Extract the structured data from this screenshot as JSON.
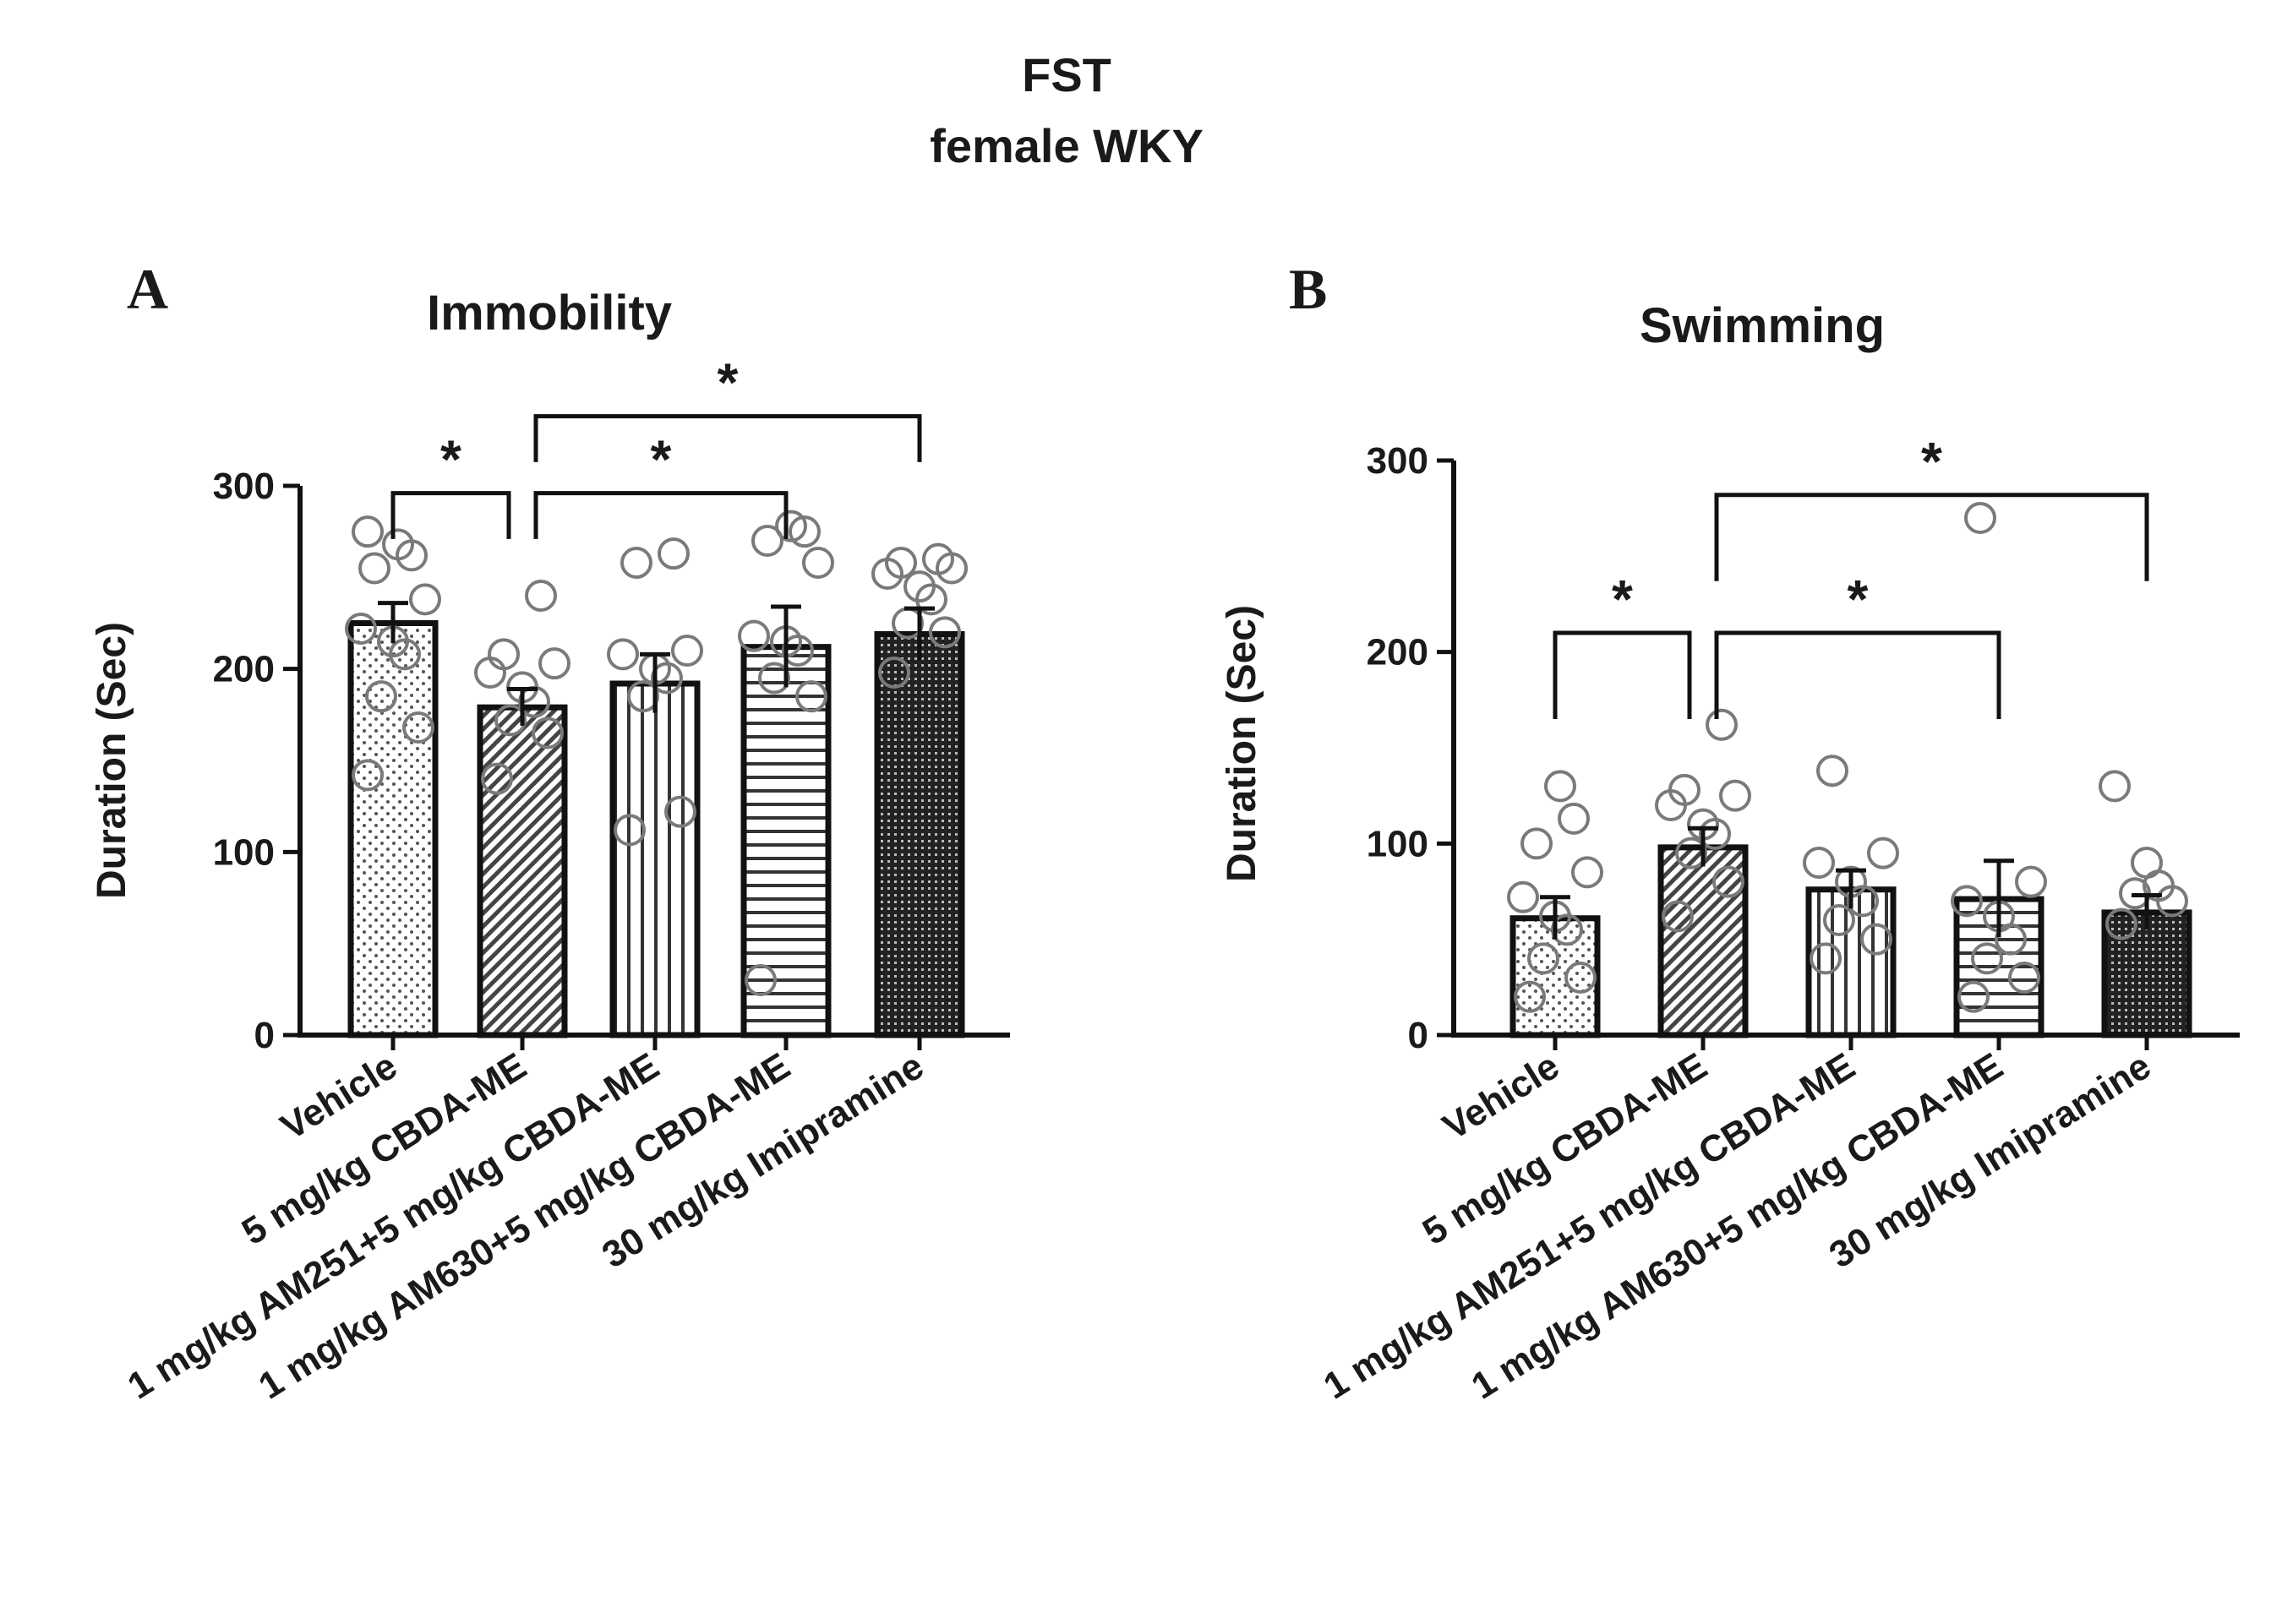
{
  "figure": {
    "title_line1": "FST",
    "title_line2": "female WKY"
  },
  "categories": [
    "Vehicle",
    "5 mg/kg CBDA-ME",
    "1 mg/kg AM251+5 mg/kg CBDA-ME",
    "1 mg/kg AM630+5 mg/kg CBDA-ME",
    "30 mg/kg Imipramine"
  ],
  "chart_data": [
    {
      "type": "bar",
      "panel": "A",
      "title": "Immobility",
      "ylabel": "Duration (Sec)",
      "xlabel": "",
      "ylim": [
        0,
        300
      ],
      "yticks": [
        0,
        100,
        200,
        300
      ],
      "categories": [
        "Vehicle",
        "5 mg/kg CBDA-ME",
        "1 mg/kg AM251+5 mg/kg CBDA-ME",
        "1 mg/kg AM630+5 mg/kg CBDA-ME",
        "30 mg/kg Imipramine"
      ],
      "values": [
        225,
        179,
        192,
        212,
        219
      ],
      "errors": [
        11,
        10,
        16,
        22,
        14
      ],
      "patterns": [
        "dots",
        "diag",
        "vert",
        "horiz",
        "dense"
      ],
      "points": [
        [
          142,
          168,
          185,
          208,
          215,
          222,
          238,
          255,
          262,
          268,
          275
        ],
        [
          140,
          165,
          172,
          182,
          190,
          198,
          203,
          208,
          240
        ],
        [
          112,
          122,
          185,
          195,
          200,
          208,
          210,
          258,
          263
        ],
        [
          30,
          185,
          195,
          210,
          215,
          218,
          258,
          270,
          275,
          278
        ],
        [
          198,
          220,
          225,
          238,
          245,
          252,
          255,
          258,
          260
        ]
      ],
      "annotations": [
        {
          "from": 0,
          "to": 1,
          "level": 296,
          "label": "*"
        },
        {
          "from": 1,
          "to": 3,
          "level": 296,
          "label": "*"
        },
        {
          "from": 1,
          "to": 4,
          "level": 338,
          "label": "*"
        }
      ]
    },
    {
      "type": "bar",
      "panel": "B",
      "title": "Swimming",
      "ylabel": "Duration (Sec)",
      "xlabel": "",
      "ylim": [
        0,
        300
      ],
      "yticks": [
        0,
        100,
        200,
        300
      ],
      "categories": [
        "Vehicle",
        "5 mg/kg CBDA-ME",
        "1 mg/kg AM251+5 mg/kg CBDA-ME",
        "1 mg/kg AM630+5 mg/kg CBDA-ME",
        "30 mg/kg Imipramine"
      ],
      "values": [
        61,
        98,
        76,
        71,
        64
      ],
      "errors": [
        11,
        10,
        10,
        20,
        9
      ],
      "patterns": [
        "dots",
        "diag",
        "vert",
        "horiz",
        "dense"
      ],
      "points": [
        [
          20,
          30,
          40,
          55,
          62,
          72,
          85,
          100,
          113,
          130
        ],
        [
          62,
          80,
          95,
          105,
          110,
          120,
          125,
          128,
          162
        ],
        [
          40,
          50,
          60,
          70,
          80,
          90,
          95,
          138
        ],
        [
          20,
          30,
          40,
          50,
          62,
          70,
          80,
          270
        ],
        [
          58,
          70,
          74,
          78,
          90,
          130
        ]
      ],
      "annotations": [
        {
          "from": 0,
          "to": 1,
          "level": 210,
          "label": "*"
        },
        {
          "from": 1,
          "to": 3,
          "level": 210,
          "label": "*"
        },
        {
          "from": 1,
          "to": 4,
          "level": 282,
          "label": "*"
        }
      ]
    }
  ]
}
